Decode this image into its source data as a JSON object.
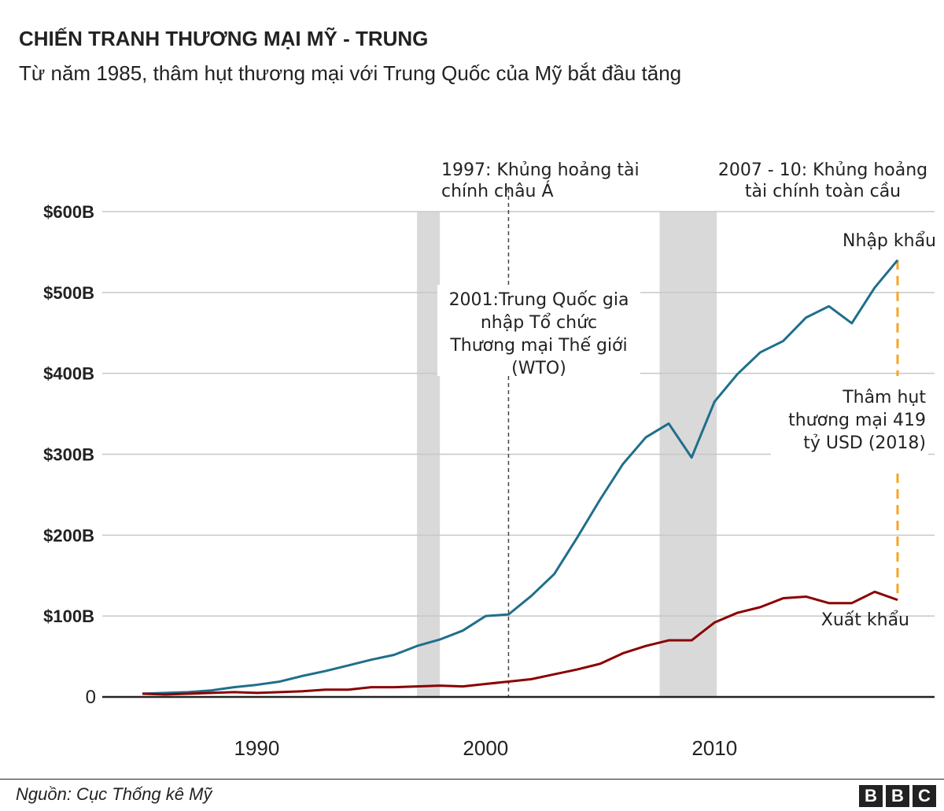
{
  "title": "CHIẾN TRANH THƯƠNG MẠI MỸ - TRUNG",
  "subtitle": "Từ năm 1985, thâm hụt thương mại với Trung Quốc của Mỹ bắt đầu tăng",
  "source": "Nguồn: Cục Thống kê Mỹ",
  "logo": "BBC",
  "chart_data": {
    "type": "line",
    "x": [
      1985,
      1986,
      1987,
      1988,
      1989,
      1990,
      1991,
      1992,
      1993,
      1994,
      1995,
      1996,
      1997,
      1998,
      1999,
      2000,
      2001,
      2002,
      2003,
      2004,
      2005,
      2006,
      2007,
      2008,
      2009,
      2010,
      2011,
      2012,
      2013,
      2014,
      2015,
      2016,
      2017,
      2018
    ],
    "series": [
      {
        "name": "Nhập khẩu",
        "color": "#1f6f8b",
        "values": [
          4,
          5,
          6,
          8,
          12,
          15,
          19,
          26,
          32,
          39,
          46,
          52,
          63,
          71,
          82,
          100,
          102,
          125,
          152,
          197,
          244,
          288,
          321,
          338,
          296,
          365,
          399,
          426,
          440,
          469,
          483,
          462,
          506,
          540
        ]
      },
      {
        "name": "Xuất khẩu",
        "color": "#8b0000",
        "values": [
          4,
          3,
          4,
          5,
          6,
          5,
          6,
          7,
          9,
          9,
          12,
          12,
          13,
          14,
          13,
          16,
          19,
          22,
          28,
          34,
          41,
          54,
          63,
          70,
          70,
          92,
          104,
          111,
          122,
          124,
          116,
          116,
          130,
          120
        ]
      }
    ],
    "ylim": [
      0,
      600
    ],
    "yticks": [
      {
        "v": 0,
        "label": "0"
      },
      {
        "v": 100,
        "label": "$100B"
      },
      {
        "v": 200,
        "label": "$200B"
      },
      {
        "v": 300,
        "label": "$300B"
      },
      {
        "v": 400,
        "label": "$400B"
      },
      {
        "v": 500,
        "label": "$500B"
      },
      {
        "v": 600,
        "label": "$600B"
      }
    ],
    "xticks": [
      {
        "v": 1990,
        "label": "1990"
      },
      {
        "v": 2000,
        "label": "2000"
      },
      {
        "v": 2010,
        "label": "2010"
      }
    ],
    "grid": true,
    "shaded_periods": [
      {
        "from": 1997,
        "to": 1998
      },
      {
        "from": 2007.6,
        "to": 2010.1
      }
    ],
    "annotations": {
      "asia_crisis": [
        "1997: Khủng hoảng tài",
        "chính châu Á"
      ],
      "global_crisis": [
        "2007 - 10: Khủng hoảng",
        "tài chính toàn cầu"
      ],
      "wto": {
        "year": 2001,
        "lines": [
          "2001:Trung Quốc gia",
          "nhập Tổ chức",
          "Thương mại Thế giới",
          "(WTO)"
        ]
      },
      "deficit": {
        "year": 2018,
        "color": "#f5a623",
        "lines": [
          "Thâm hụt",
          "thương mại 419",
          "tỷ USD (2018)"
        ]
      }
    }
  }
}
